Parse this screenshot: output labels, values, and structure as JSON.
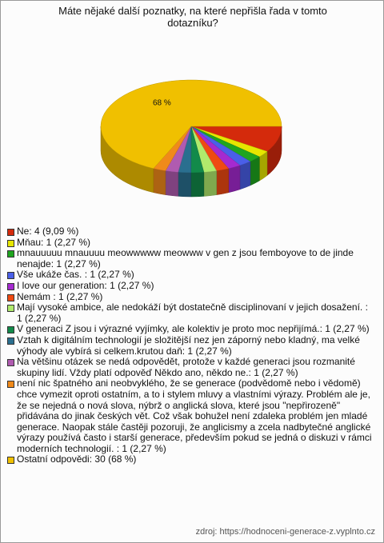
{
  "chart_data": {
    "type": "pie",
    "title": "Máte nějaké další poznatky, na které nepřišla řada v tomto dotazníku?",
    "categories": [
      "Ne: 4 (9,09 %)",
      "Mňau: 1 (2,27 %)",
      "mnauuuuu mnauuuu meowwwww meowww v gen z jsou femboyove to de jinde nenajde: 1 (2,27 %)",
      "Vše ukáže čas. : 1 (2,27 %)",
      "I love our generation: 1 (2,27 %)",
      "Nemám : 1 (2,27 %)",
      "Mají vysoké ambice, ale nedokáží být dostatečně disciplinovaní v jejich dosažení. : 1 (2,27 %)",
      "V generaci Z jsou i výrazné vyjímky, ale kolektiv je proto moc nepřijímá.: 1 (2,27 %)",
      "Vztah k digitálním technologií je složitější nez jen záporný nebo kladný, ma velké výhody ale vybírá si celkem.krutou daň: 1 (2,27 %)",
      "Na většinu otázek se nedá odpovědět, protože v každé generaci jsou rozmanité skupiny lidí. Vždy platí odpověď Někdo ano, někdo ne.: 1 (2,27 %)",
      "není nic špatného ani neobvyklého, že se generace (podvědomě nebo i vědomě) chce vymezit oproti ostatním, a to i stylem mluvy a vlastními výrazy. Problém ale je, že se nejedná o nová slova, nýbrž o anglická slova, které jsou \"nepřirozeně\" přidávána do jinak českých vět. Což však bohužel není zdaleka problém jen mladé generace. Naopak stále častěji pozoruji, že anglicismy a zcela nadbytečné anglické výrazy používá často i starší generace, především pokud se jedná o diskuzi v rámci moderních technologií. : 1 (2,27 %)",
      "Ostatní odpovědi: 30 (68 %)"
    ],
    "values": [
      9.09,
      2.27,
      2.27,
      2.27,
      2.27,
      2.27,
      2.27,
      2.27,
      2.27,
      2.27,
      2.27,
      68
    ],
    "value_labels": [
      null,
      null,
      null,
      null,
      null,
      null,
      null,
      null,
      null,
      null,
      null,
      "68 %"
    ],
    "colors": [
      "#d42a0c",
      "#e6e600",
      "#1fa51f",
      "#4a5fe8",
      "#a52ad0",
      "#ef4a12",
      "#b0ea6c",
      "#128a4a",
      "#2a6f8f",
      "#b05bb0",
      "#f08a1a",
      "#f0c000"
    ],
    "source": "zdroj: https://hodnoceni-generace-z.vyplnto.cz"
  }
}
